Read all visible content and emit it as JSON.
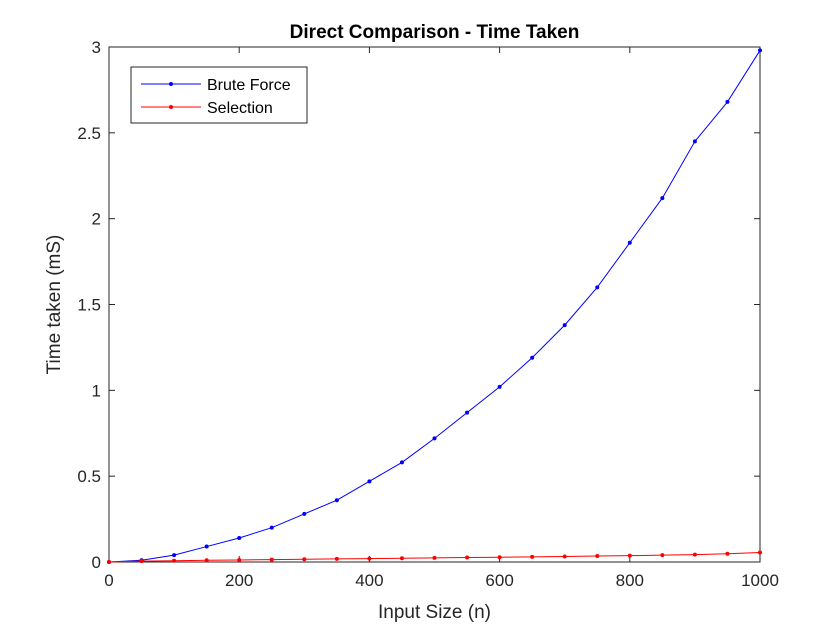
{
  "chart_data": {
    "type": "line",
    "title": "Direct Comparison - Time Taken",
    "xlabel": "Input Size (n)",
    "ylabel": "Time taken (mS)",
    "xlim": [
      0,
      1000
    ],
    "ylim": [
      0,
      3
    ],
    "xticks": [
      0,
      200,
      400,
      600,
      800,
      1000
    ],
    "yticks": [
      0,
      0.5,
      1,
      1.5,
      2,
      2.5,
      3
    ],
    "xtick_labels": [
      "0",
      "200",
      "400",
      "600",
      "800",
      "1000"
    ],
    "ytick_labels": [
      "0",
      "0.5",
      "1",
      "1.5",
      "2",
      "2.5",
      "3"
    ],
    "grid": false,
    "legend_position": "top-left",
    "x": [
      0,
      50,
      100,
      150,
      200,
      250,
      300,
      350,
      400,
      450,
      500,
      550,
      600,
      650,
      700,
      750,
      800,
      850,
      900,
      950,
      1000
    ],
    "series": [
      {
        "name": "Brute Force",
        "color": "#0000ff",
        "marker": "dot",
        "values": [
          0.0,
          0.01,
          0.04,
          0.09,
          0.14,
          0.2,
          0.28,
          0.36,
          0.47,
          0.58,
          0.72,
          0.87,
          1.02,
          1.19,
          1.38,
          1.6,
          1.86,
          2.12,
          2.45,
          2.68,
          2.98
        ]
      },
      {
        "name": "Selection",
        "color": "#ff0000",
        "marker": "dot",
        "values": [
          0.0,
          0.005,
          0.007,
          0.01,
          0.012,
          0.014,
          0.016,
          0.018,
          0.02,
          0.022,
          0.024,
          0.026,
          0.028,
          0.03,
          0.032,
          0.035,
          0.037,
          0.04,
          0.043,
          0.048,
          0.055
        ]
      }
    ]
  }
}
